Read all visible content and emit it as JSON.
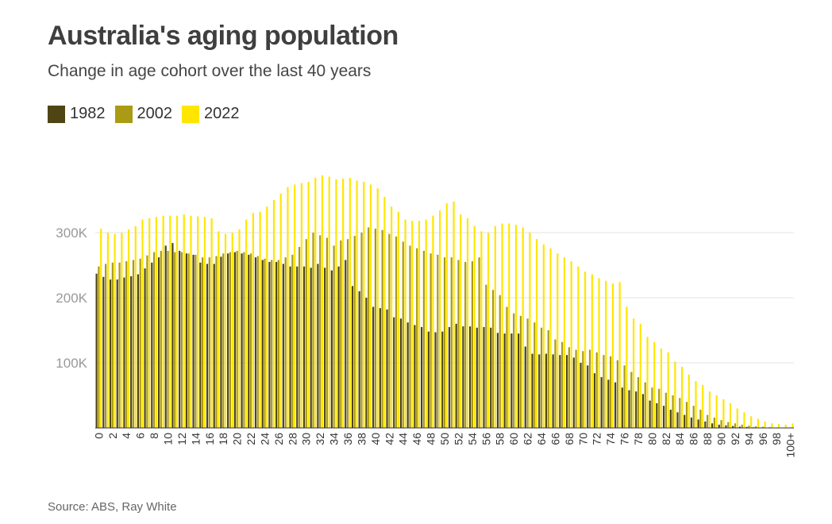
{
  "title": "Australia's aging population",
  "subtitle": "Change in age cohort over the last 40 years",
  "source": "Source: ABS, Ray White",
  "legend": [
    {
      "label": "1982",
      "color": "#4f4514"
    },
    {
      "label": "2002",
      "color": "#ab9a14"
    },
    {
      "label": "2022",
      "color": "#ffe600"
    }
  ],
  "chart_data": {
    "type": "bar",
    "title": "Australia's aging population",
    "xlabel": "",
    "ylabel": "",
    "ylim": [
      0,
      400000
    ],
    "yticks": [
      {
        "value": 100000,
        "label": "100K"
      },
      {
        "value": 200000,
        "label": "200K"
      },
      {
        "value": 300000,
        "label": "300K"
      }
    ],
    "grid": true,
    "categories": [
      "0",
      "1",
      "2",
      "3",
      "4",
      "5",
      "6",
      "7",
      "8",
      "9",
      "10",
      "11",
      "12",
      "13",
      "14",
      "15",
      "16",
      "17",
      "18",
      "19",
      "20",
      "21",
      "22",
      "23",
      "24",
      "25",
      "26",
      "27",
      "28",
      "29",
      "30",
      "31",
      "32",
      "33",
      "34",
      "35",
      "36",
      "37",
      "38",
      "39",
      "40",
      "41",
      "42",
      "43",
      "44",
      "45",
      "46",
      "47",
      "48",
      "49",
      "50",
      "51",
      "52",
      "53",
      "54",
      "55",
      "56",
      "57",
      "58",
      "59",
      "60",
      "61",
      "62",
      "63",
      "64",
      "65",
      "66",
      "67",
      "68",
      "69",
      "70",
      "71",
      "72",
      "73",
      "74",
      "75",
      "76",
      "77",
      "78",
      "79",
      "80",
      "81",
      "82",
      "83",
      "84",
      "85",
      "86",
      "87",
      "88",
      "89",
      "90",
      "91",
      "92",
      "93",
      "94",
      "95",
      "96",
      "97",
      "98",
      "99",
      "100+"
    ],
    "series": [
      {
        "name": "1982",
        "values": [
          237000,
          232000,
          228000,
          228000,
          231000,
          233000,
          236000,
          245000,
          254000,
          262000,
          280000,
          284000,
          272000,
          268000,
          266000,
          254000,
          252000,
          252000,
          263000,
          268000,
          270000,
          268000,
          266000,
          262000,
          258000,
          255000,
          255000,
          252000,
          248000,
          248000,
          248000,
          246000,
          252000,
          246000,
          242000,
          248000,
          258000,
          218000,
          210000,
          200000,
          186000,
          184000,
          182000,
          170000,
          168000,
          162000,
          158000,
          155000,
          148000,
          147000,
          148000,
          155000,
          160000,
          156000,
          156000,
          154000,
          155000,
          154000,
          146000,
          145000,
          145000,
          145000,
          125000,
          114000,
          113000,
          114000,
          113000,
          112000,
          112000,
          108000,
          100000,
          96000,
          84000,
          78000,
          74000,
          70000,
          62000,
          58000,
          56000,
          52000,
          42000,
          38000,
          34000,
          28000,
          24000,
          20000,
          16000,
          13000,
          10000,
          7000,
          5000,
          4000,
          3000,
          2000,
          1500,
          1000,
          600,
          400,
          300,
          200,
          200
        ]
      },
      {
        "name": "2002",
        "values": [
          248000,
          252000,
          254000,
          254000,
          256000,
          258000,
          260000,
          265000,
          270000,
          272000,
          272000,
          270000,
          270000,
          268000,
          266000,
          262000,
          262000,
          264000,
          268000,
          270000,
          272000,
          270000,
          268000,
          264000,
          260000,
          258000,
          258000,
          262000,
          266000,
          278000,
          290000,
          300000,
          296000,
          292000,
          280000,
          288000,
          290000,
          295000,
          300000,
          308000,
          306000,
          304000,
          298000,
          294000,
          286000,
          280000,
          276000,
          272000,
          268000,
          266000,
          262000,
          262000,
          258000,
          255000,
          256000,
          262000,
          220000,
          212000,
          204000,
          186000,
          176000,
          172000,
          168000,
          162000,
          154000,
          150000,
          136000,
          132000,
          124000,
          120000,
          118000,
          120000,
          116000,
          112000,
          110000,
          104000,
          96000,
          86000,
          78000,
          70000,
          62000,
          60000,
          54000,
          50000,
          46000,
          40000,
          34000,
          28000,
          20000,
          16000,
          12000,
          9000,
          7000,
          5000,
          3500,
          2500,
          1800,
          1200,
          800,
          500,
          800
        ]
      },
      {
        "name": "2022",
        "values": [
          306000,
          300000,
          298000,
          300000,
          305000,
          310000,
          320000,
          322000,
          324000,
          326000,
          326000,
          326000,
          328000,
          326000,
          325000,
          324000,
          322000,
          302000,
          298000,
          300000,
          305000,
          320000,
          330000,
          332000,
          340000,
          350000,
          360000,
          370000,
          374000,
          376000,
          378000,
          384000,
          388000,
          386000,
          382000,
          383000,
          384000,
          380000,
          378000,
          374000,
          368000,
          355000,
          340000,
          332000,
          320000,
          318000,
          318000,
          320000,
          326000,
          334000,
          345000,
          348000,
          328000,
          322000,
          310000,
          302000,
          300000,
          310000,
          314000,
          314000,
          312000,
          308000,
          300000,
          290000,
          282000,
          276000,
          268000,
          262000,
          256000,
          248000,
          240000,
          236000,
          230000,
          226000,
          222000,
          224000,
          186000,
          168000,
          160000,
          140000,
          132000,
          122000,
          116000,
          102000,
          94000,
          82000,
          72000,
          66000,
          56000,
          50000,
          44000,
          38000,
          30000,
          24000,
          18000,
          14000,
          10000,
          7000,
          6000,
          5000,
          7000
        ]
      }
    ]
  }
}
